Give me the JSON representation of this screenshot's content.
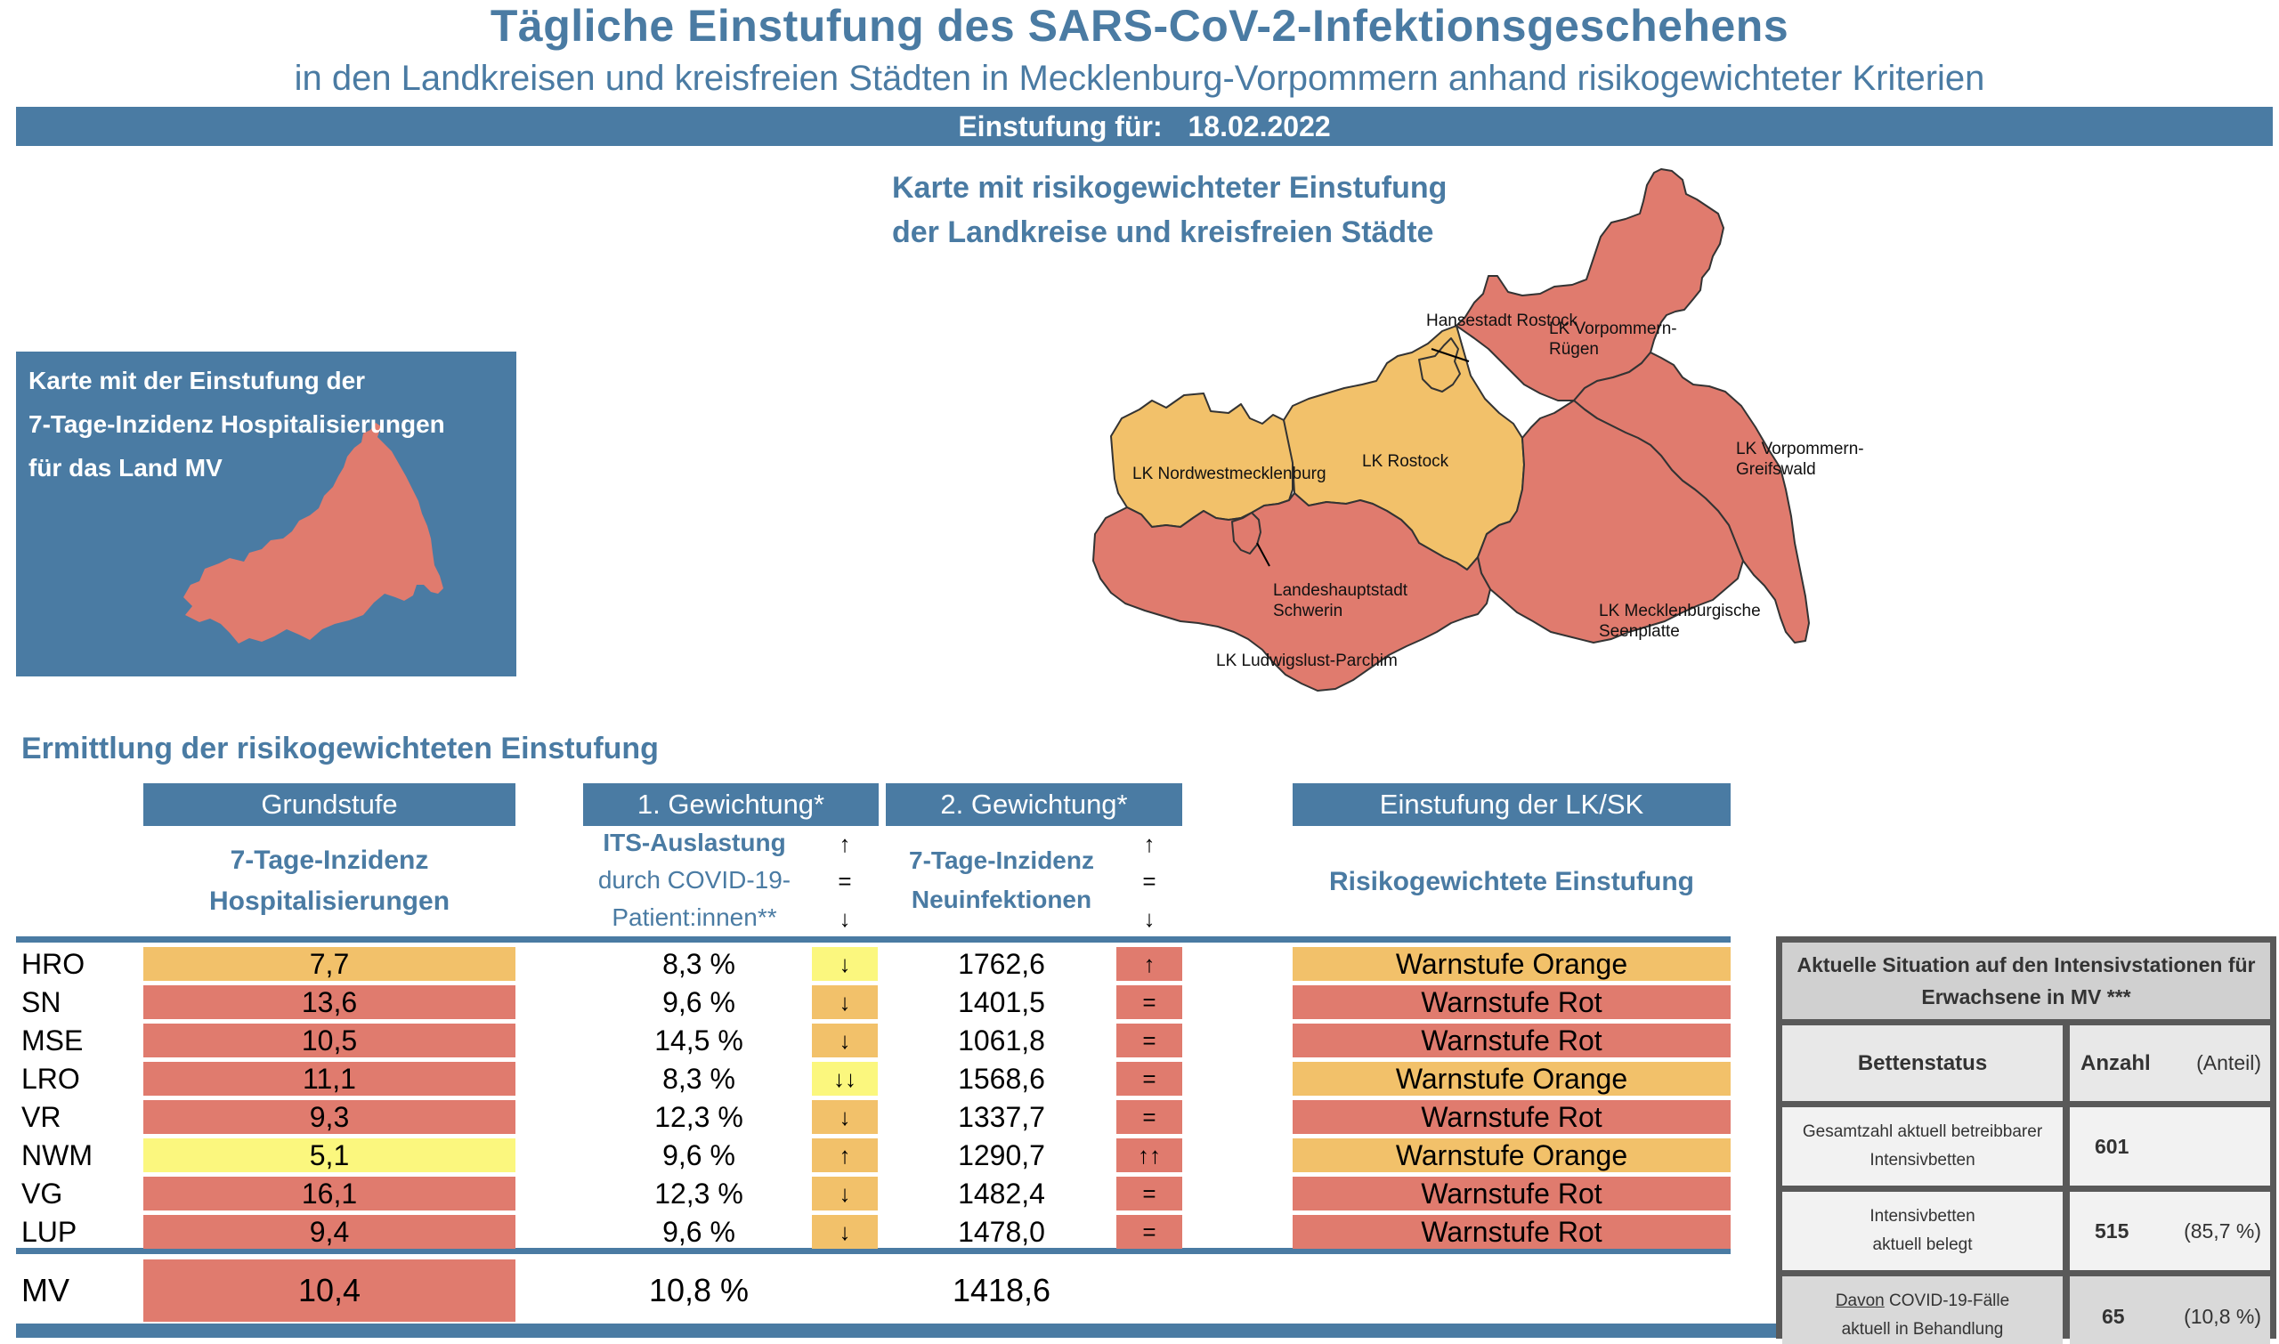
{
  "header": {
    "title": "Tägliche Einstufung des SARS-CoV-2-Infektionsgeschehens",
    "subtitle": "in den Landkreisen und kreisfreien Städten in Mecklenburg-Vorpommern anhand risikogewichteter Kriterien",
    "date_label": "Einstufung für:",
    "date_value": "18.02.2022"
  },
  "hosp_map": {
    "title_lines": [
      "Karte mit der Einstufung der",
      "7-Tage-Inzidenz Hospitalisierungen",
      "für das Land MV"
    ],
    "state_level": "Warnstufe Rot"
  },
  "risk_map": {
    "title_lines": [
      "Karte mit risikogewichteter Einstufung",
      "der Landkreise und kreisfreien Städte"
    ],
    "regions": [
      {
        "name": "Hansestadt Rostock",
        "level": "Warnstufe Orange"
      },
      {
        "name": "LK Vorpommern-Rügen",
        "lines": [
          "LK Vorpommern-",
          "Rügen"
        ],
        "level": "Warnstufe Rot"
      },
      {
        "name": "LK Nordwestmecklenburg",
        "level": "Warnstufe Orange"
      },
      {
        "name": "LK Rostock",
        "level": "Warnstufe Orange"
      },
      {
        "name": "LK Vorpommern-Greifswald",
        "lines": [
          "LK Vorpommern-",
          "Greifswald"
        ],
        "level": "Warnstufe Rot"
      },
      {
        "name": "Landeshauptstadt Schwerin",
        "lines": [
          "Landeshauptstadt",
          "Schwerin"
        ],
        "level": "Warnstufe Rot"
      },
      {
        "name": "LK Mecklenburgische Seenplatte",
        "lines": [
          "LK Mecklenburgische",
          "Seenplatte"
        ],
        "level": "Warnstufe Rot"
      },
      {
        "name": "LK Ludwigslust-Parchim",
        "level": "Warnstufe Rot"
      }
    ]
  },
  "colors": {
    "brand_blue": "#4a7ba3",
    "rot": "#e07b6e",
    "orange": "#f2c16a",
    "gelb": "#fbf77e",
    "icu_dark": "#595959"
  },
  "table": {
    "section_title": "Ermittlung der risikogewichteten Einstufung",
    "headers": {
      "grundstufe": "Grundstufe",
      "gewichtung1": "1. Gewichtung*",
      "gewichtung2": "2. Gewichtung*",
      "einstufung": "Einstufung der LK/SK"
    },
    "subheaders": {
      "grundstufe_lines": [
        "7-Tage-Inzidenz",
        "Hospitalisierungen"
      ],
      "its_lines": [
        "ITS-Auslastung",
        "durch COVID-19-",
        "Patient:innen**"
      ],
      "neu_lines": [
        "7-Tage-Inzidenz",
        "Neuinfektionen"
      ],
      "einstufung": "Risikogewichtete Einstufung",
      "legend_arrows": [
        "↑",
        "=",
        "↓"
      ]
    },
    "rows": [
      {
        "label": "HRO",
        "hosp": "7,7",
        "hosp_color": "orange",
        "its": "8,3 %",
        "its_trend": "↓",
        "its_trend_color": "gelb",
        "neu": "1762,6",
        "neu_trend": "↑",
        "neu_trend_color": "rot",
        "einstufung": "Warnstufe Orange",
        "einstufung_color": "orange"
      },
      {
        "label": "SN",
        "hosp": "13,6",
        "hosp_color": "rot",
        "its": "9,6 %",
        "its_trend": "↓",
        "its_trend_color": "orange",
        "neu": "1401,5",
        "neu_trend": "=",
        "neu_trend_color": "rot",
        "einstufung": "Warnstufe Rot",
        "einstufung_color": "rot"
      },
      {
        "label": "MSE",
        "hosp": "10,5",
        "hosp_color": "rot",
        "its": "14,5 %",
        "its_trend": "↓",
        "its_trend_color": "orange",
        "neu": "1061,8",
        "neu_trend": "=",
        "neu_trend_color": "rot",
        "einstufung": "Warnstufe Rot",
        "einstufung_color": "rot"
      },
      {
        "label": "LRO",
        "hosp": "11,1",
        "hosp_color": "rot",
        "its": "8,3 %",
        "its_trend": "↓↓",
        "its_trend_color": "gelb",
        "neu": "1568,6",
        "neu_trend": "=",
        "neu_trend_color": "rot",
        "einstufung": "Warnstufe Orange",
        "einstufung_color": "orange"
      },
      {
        "label": "VR",
        "hosp": "9,3",
        "hosp_color": "rot",
        "its": "12,3 %",
        "its_trend": "↓",
        "its_trend_color": "orange",
        "neu": "1337,7",
        "neu_trend": "=",
        "neu_trend_color": "rot",
        "einstufung": "Warnstufe Rot",
        "einstufung_color": "rot"
      },
      {
        "label": "NWM",
        "hosp": "5,1",
        "hosp_color": "gelb",
        "its": "9,6 %",
        "its_trend": "↑",
        "its_trend_color": "orange",
        "neu": "1290,7",
        "neu_trend": "↑↑",
        "neu_trend_color": "rot",
        "einstufung": "Warnstufe Orange",
        "einstufung_color": "orange"
      },
      {
        "label": "VG",
        "hosp": "16,1",
        "hosp_color": "rot",
        "its": "12,3 %",
        "its_trend": "↓",
        "its_trend_color": "orange",
        "neu": "1482,4",
        "neu_trend": "=",
        "neu_trend_color": "rot",
        "einstufung": "Warnstufe Rot",
        "einstufung_color": "rot"
      },
      {
        "label": "LUP",
        "hosp": "9,4",
        "hosp_color": "rot",
        "its": "9,6 %",
        "its_trend": "↓",
        "its_trend_color": "orange",
        "neu": "1478,0",
        "neu_trend": "=",
        "neu_trend_color": "rot",
        "einstufung": "Warnstufe Rot",
        "einstufung_color": "rot"
      }
    ],
    "total": {
      "label": "MV",
      "hosp": "10,4",
      "hosp_color": "rot",
      "its": "10,8 %",
      "neu": "1418,6"
    }
  },
  "icu": {
    "title_lines": [
      "Aktuelle Situation auf den Intensivstationen für",
      "Erwachsene in MV ***"
    ],
    "col_status": "Bettenstatus",
    "col_count": "Anzahl",
    "col_share": "(Anteil)",
    "rows": [
      {
        "label_lines": [
          "Gesamtzahl aktuell betreibbarer",
          "Intensivbetten"
        ],
        "count": "601",
        "share": ""
      },
      {
        "label_lines": [
          "Intensivbetten",
          "aktuell belegt"
        ],
        "count": "515",
        "share": "(85,7 %)"
      },
      {
        "label_prefix_underlined": "Davon",
        "label_lines": [
          " COVID-19-Fälle",
          "aktuell in Behandlung"
        ],
        "count": "65",
        "share": "(10,8 %)"
      }
    ]
  }
}
